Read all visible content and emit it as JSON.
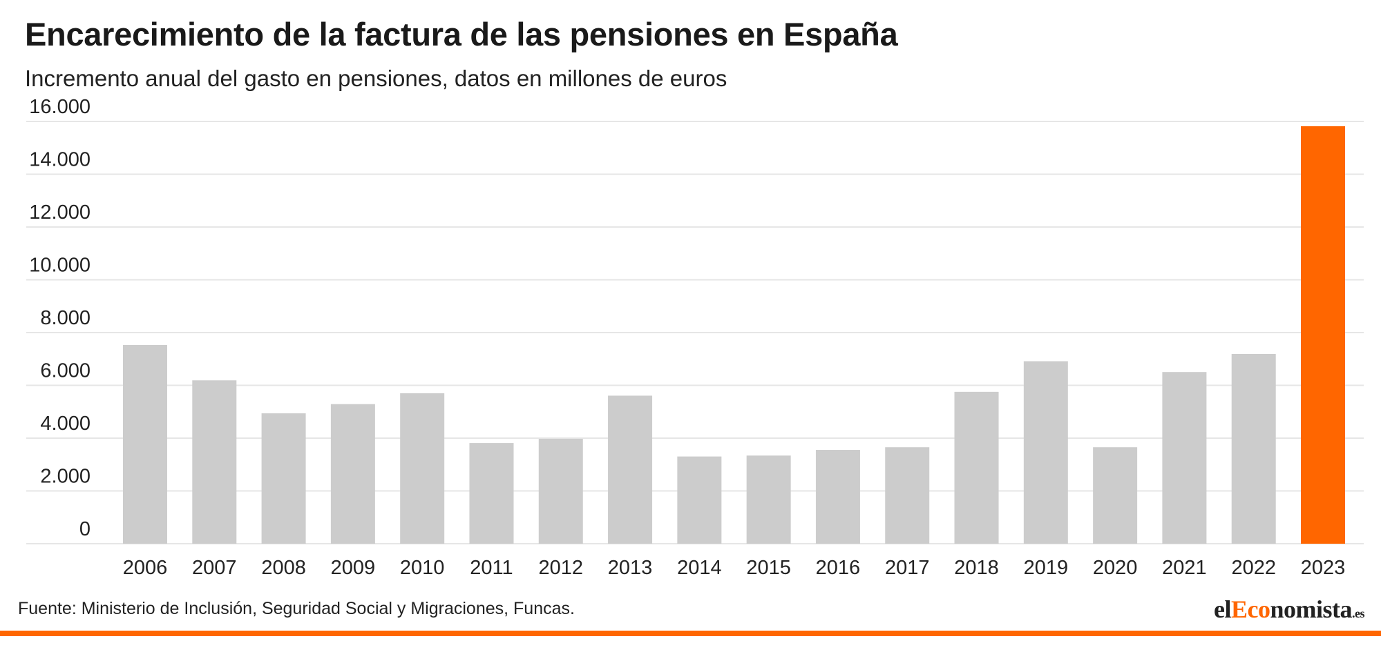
{
  "header": {
    "title": "Encarecimiento de la factura de las pensiones en España",
    "subtitle": "Incremento anual del gasto en pensiones, datos en millones de euros"
  },
  "footer": {
    "source": "Fuente: Ministerio de Inclusión, Seguridad Social y Migraciones, Funcas.",
    "logo": "elEconomista.es"
  },
  "colors": {
    "bar_default": "#cccccc",
    "bar_highlight": "#ff6600",
    "grid": "#e6e6e6",
    "accent": "#ff6600"
  },
  "chart_data": {
    "type": "bar",
    "title": "Encarecimiento de la factura de las pensiones en España",
    "subtitle": "Incremento anual del gasto en pensiones, datos en millones de euros",
    "categories": [
      "2006",
      "2007",
      "2008",
      "2009",
      "2010",
      "2011",
      "2012",
      "2013",
      "2014",
      "2015",
      "2016",
      "2017",
      "2018",
      "2019",
      "2020",
      "2021",
      "2022",
      "2023"
    ],
    "values": [
      7530,
      6190,
      4940,
      5290,
      5700,
      3815,
      3975,
      5610,
      3305,
      3340,
      3555,
      3655,
      5755,
      6915,
      3655,
      6505,
      7190,
      15820
    ],
    "highlight": [
      "2023"
    ],
    "ylim": [
      0,
      16000
    ],
    "yticks": [
      0,
      2000,
      4000,
      6000,
      8000,
      10000,
      12000,
      14000,
      16000
    ],
    "ytick_labels": [
      "0",
      "2.000",
      "4.000",
      "6.000",
      "8.000",
      "10.000",
      "12.000",
      "14.000",
      "16.000"
    ],
    "grid": true,
    "legend": "none"
  }
}
